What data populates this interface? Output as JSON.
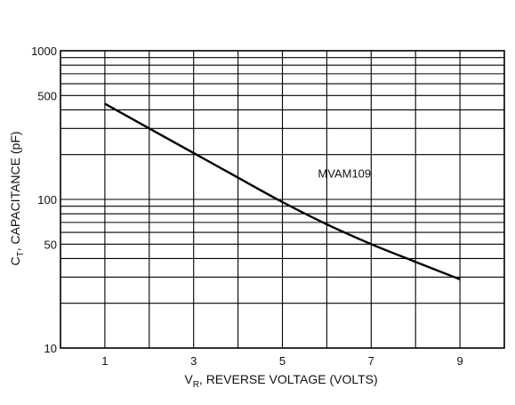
{
  "chart_data": {
    "type": "line",
    "title": "",
    "xlabel_main": "V",
    "xlabel_sub": "R",
    "xlabel_rest": ", REVERSE VOLTAGE (VOLTS)",
    "ylabel_main": "C",
    "ylabel_sub": "T",
    "ylabel_rest": ", CAPACITANCE (pF)",
    "x_ticks": [
      "1",
      "3",
      "5",
      "7",
      "9"
    ],
    "y_ticks": [
      "10",
      "50",
      "100",
      "500",
      "1000"
    ],
    "xlim": [
      0,
      10
    ],
    "ylim": [
      10,
      1000
    ],
    "y_scale": "log",
    "grid": true,
    "series": [
      {
        "name": "MVAM109",
        "color": "#000000",
        "x": [
          1,
          2,
          3,
          4,
          5,
          6,
          7,
          8,
          9
        ],
        "y": [
          440,
          300,
          205,
          140,
          96,
          68,
          50,
          38,
          29
        ]
      }
    ]
  }
}
